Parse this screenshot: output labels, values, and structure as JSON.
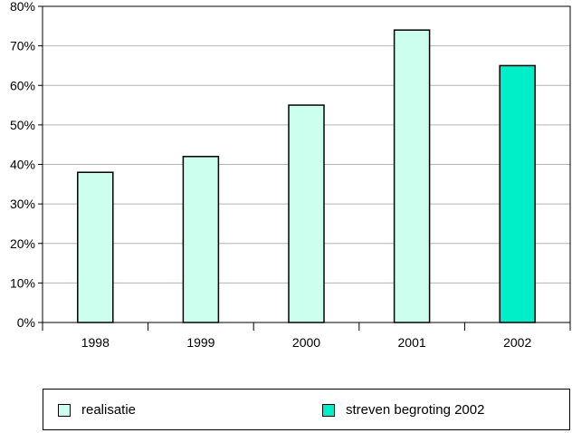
{
  "chart_data": {
    "type": "bar",
    "categories": [
      "1998",
      "1999",
      "2000",
      "2001",
      "2002"
    ],
    "series": [
      {
        "name": "realisatie",
        "values": [
          38,
          42,
          55,
          74,
          null
        ],
        "color": "#ccffee"
      },
      {
        "name": "streven begroting 2002",
        "values": [
          null,
          null,
          null,
          null,
          65
        ],
        "color": "#00eec8"
      }
    ],
    "y_ticks": [
      "0%",
      "10%",
      "20%",
      "30%",
      "40%",
      "50%",
      "60%",
      "70%",
      "80%"
    ],
    "ylim": [
      0,
      80
    ],
    "grid": true,
    "legend_position": "bottom"
  }
}
